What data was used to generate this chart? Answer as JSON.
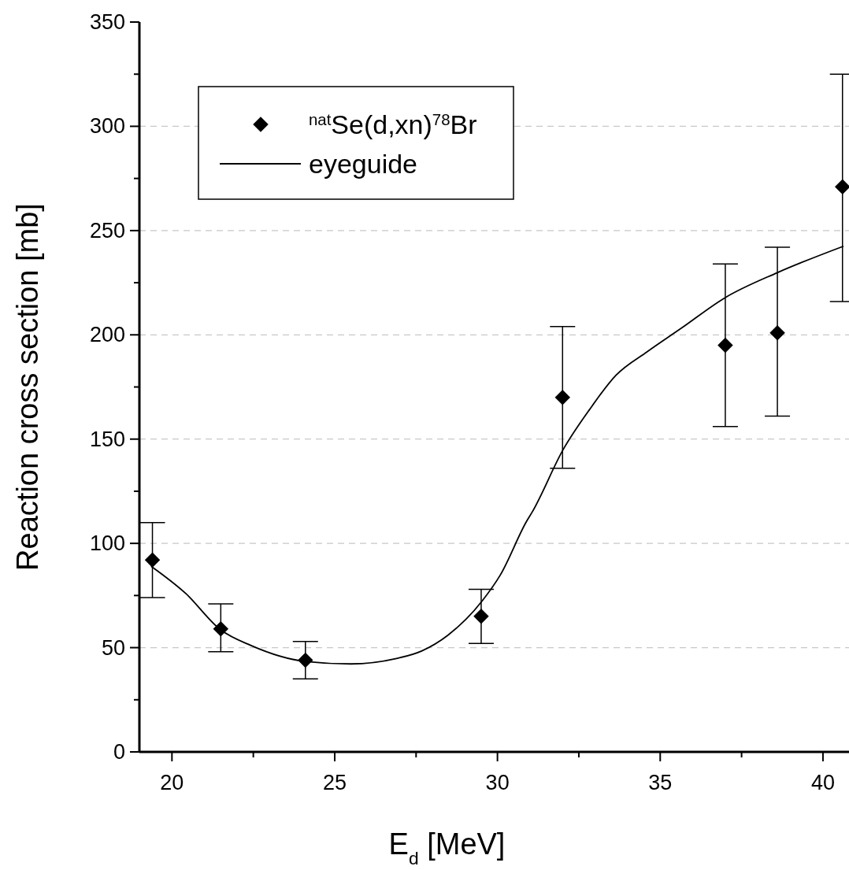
{
  "chart_data": {
    "type": "scatter",
    "xlabel": "E$_{d}$ [MeV]",
    "ylabel": "Reaction cross section [mb]",
    "xlim": [
      19,
      40.8
    ],
    "ylim": [
      0,
      350
    ],
    "xticks": [
      20,
      {
        "value": 22.5,
        "label": null
      },
      25,
      {
        "value": 27.5,
        "label": null
      },
      30,
      {
        "value": 32.5,
        "label": null
      },
      35,
      {
        "value": 37.5,
        "label": null
      },
      40
    ],
    "yticks": [
      0,
      {
        "value": 25,
        "label": null
      },
      50,
      {
        "value": 75,
        "label": null
      },
      100,
      {
        "value": 125,
        "label": null
      },
      150,
      {
        "value": 175,
        "label": null
      },
      200,
      {
        "value": 225,
        "label": null
      },
      250,
      {
        "value": 275,
        "label": null
      },
      300,
      {
        "value": 325,
        "label": null
      },
      350
    ],
    "grid": "y",
    "legend": "top left",
    "series": [
      {
        "name": "$^{nat}$Se(d,xn)$^{78}$Br",
        "marker": "diamond",
        "color": "#000000",
        "x": [
          19.4,
          21.5,
          24.1,
          29.5,
          32.0,
          37.0,
          38.6,
          40.6
        ],
        "values": [
          92,
          59,
          44,
          65,
          170,
          195,
          201,
          271
        ],
        "errors": [
          [
            74,
            110
          ],
          [
            48,
            71
          ],
          [
            35,
            53
          ],
          [
            52,
            78
          ],
          [
            136,
            204
          ],
          [
            156,
            234
          ],
          [
            161,
            242
          ],
          [
            216,
            325
          ]
        ]
      },
      {
        "name": "eyeguide",
        "type": "line",
        "marker": "none",
        "line_style": "solid",
        "color": "#000000",
        "x": [
          19.36,
          20.42,
          21.5,
          22.43,
          24.09,
          25.5,
          26.87,
          27.67,
          28.48,
          29.53,
          30.09,
          30.9,
          31.07,
          32.03,
          32.83,
          33.64,
          34.6,
          35.65,
          36.98,
          38.61,
          40.63
        ],
        "values": [
          89,
          76,
          58.5,
          51,
          43.4,
          42.2,
          44.7,
          48.4,
          56,
          72.4,
          84.9,
          110.7,
          115.1,
          145.3,
          164.2,
          180.6,
          191.9,
          203.2,
          217.7,
          229.9,
          242.5
        ]
      }
    ]
  }
}
